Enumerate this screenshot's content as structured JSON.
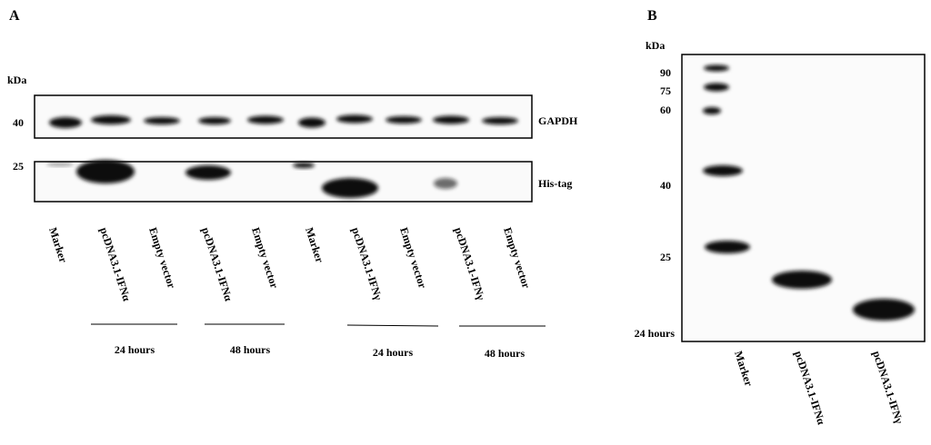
{
  "panel_a": {
    "label": "A",
    "unit": "kDa",
    "markers": [
      "40",
      "25"
    ],
    "blots": [
      "GAPDH",
      "His-tag"
    ],
    "lanes": [
      "Marker",
      "pcDNA3.1-IFNα",
      "Empty vector",
      "pcDNA3.1-IFNα",
      "Empty vector",
      "Marker",
      "pcDNA3.1-IFNγ",
      "Empty vector",
      "pcDNA3.1-IFNγ",
      "Empty vector"
    ],
    "time_labels": [
      "24 hours",
      "48 hours",
      "24 hours",
      "48 hours"
    ]
  },
  "panel_b": {
    "label": "B",
    "unit": "kDa",
    "markers": [
      "90",
      "75",
      "60",
      "40",
      "25"
    ],
    "time_label": "24 hours",
    "lanes": [
      "Marker",
      "pcDNA3.1-IFNα",
      "pcDNA3.1-IFNγ"
    ]
  }
}
